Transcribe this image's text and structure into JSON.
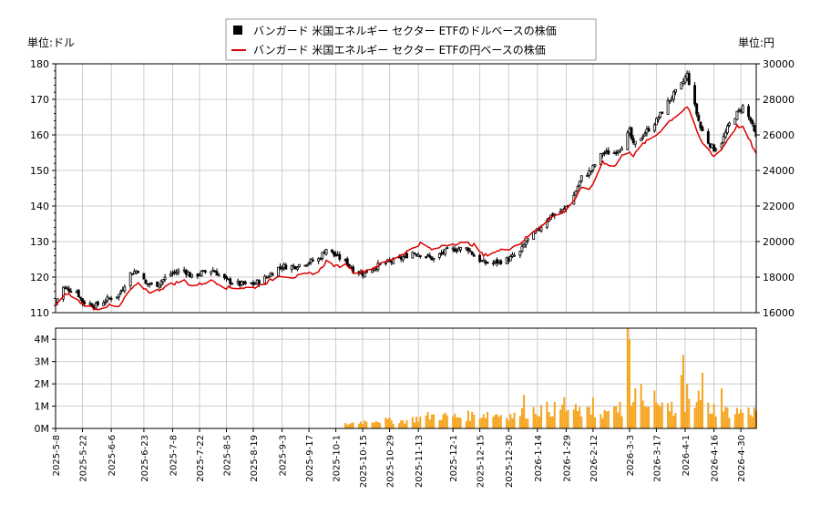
{
  "chart_data": [
    {
      "type": "candlestick+line",
      "legend": {
        "placement": "top-center",
        "entries": [
          {
            "label": "バンガード 米国エネルギー セクター ETFのドルベースの株価",
            "color": "#000000",
            "marker": "square"
          },
          {
            "label": "バンガード 米国エネルギー セクター ETFの円ベースの株価",
            "color": "#dd0000",
            "marker": "line"
          }
        ]
      },
      "left_unit_label": "単位:ドル",
      "right_unit_label": "単位:円",
      "ylim_left": [
        110,
        180
      ],
      "ylim_right": [
        16000,
        30000
      ],
      "yticks_left": [
        110,
        120,
        130,
        140,
        150,
        160,
        170,
        180
      ],
      "yticks_right": [
        16000,
        18000,
        20000,
        22000,
        24000,
        26000,
        28000,
        30000
      ],
      "grid": true,
      "price_anchors": [
        [
          "2025-05-08",
          113
        ],
        [
          "2025-05-12",
          117
        ],
        [
          "2025-05-19",
          116
        ],
        [
          "2025-05-22",
          113
        ],
        [
          "2025-05-29",
          112
        ],
        [
          "2025-06-05",
          114
        ],
        [
          "2025-06-10",
          115
        ],
        [
          "2025-06-16",
          121
        ],
        [
          "2025-06-20",
          122
        ],
        [
          "2025-06-24",
          118
        ],
        [
          "2025-06-30",
          118
        ],
        [
          "2025-07-07",
          121
        ],
        [
          "2025-07-14",
          122
        ],
        [
          "2025-07-18",
          120
        ],
        [
          "2025-07-22",
          121
        ],
        [
          "2025-07-29",
          122
        ],
        [
          "2025-08-05",
          119
        ],
        [
          "2025-08-12",
          118
        ],
        [
          "2025-08-19",
          118
        ],
        [
          "2025-08-26",
          120
        ],
        [
          "2025-09-02",
          123
        ],
        [
          "2025-09-09",
          123
        ],
        [
          "2025-09-15",
          124
        ],
        [
          "2025-09-22",
          125
        ],
        [
          "2025-09-26",
          128
        ],
        [
          "2025-10-01",
          126
        ],
        [
          "2025-10-07",
          124
        ],
        [
          "2025-10-10",
          122
        ],
        [
          "2025-10-15",
          121
        ],
        [
          "2025-10-22",
          123
        ],
        [
          "2025-10-27",
          124
        ],
        [
          "2025-11-03",
          125
        ],
        [
          "2025-11-10",
          127
        ],
        [
          "2025-11-17",
          126
        ],
        [
          "2025-11-21",
          125
        ],
        [
          "2025-11-26",
          127
        ],
        [
          "2025-12-03",
          128
        ],
        [
          "2025-12-09",
          128
        ],
        [
          "2025-12-12",
          126
        ],
        [
          "2025-12-17",
          124
        ],
        [
          "2025-12-22",
          124
        ],
        [
          "2025-12-30",
          125
        ],
        [
          "2026-01-05",
          127
        ],
        [
          "2026-01-08",
          130
        ],
        [
          "2026-01-14",
          133
        ],
        [
          "2026-01-20",
          137
        ],
        [
          "2026-01-28",
          139
        ],
        [
          "2026-02-02",
          143
        ],
        [
          "2026-02-06",
          148
        ],
        [
          "2026-02-11",
          150
        ],
        [
          "2026-02-17",
          155
        ],
        [
          "2026-02-23",
          155
        ],
        [
          "2026-02-27",
          157
        ],
        [
          "2026-03-03",
          161
        ],
        [
          "2026-03-05",
          157
        ],
        [
          "2026-03-10",
          160
        ],
        [
          "2026-03-17",
          164
        ],
        [
          "2026-03-24",
          170
        ],
        [
          "2026-03-30",
          174
        ],
        [
          "2026-04-02",
          177
        ],
        [
          "2026-04-06",
          168
        ],
        [
          "2026-04-09",
          162
        ],
        [
          "2026-04-13",
          158
        ],
        [
          "2026-04-16",
          156
        ],
        [
          "2026-04-20",
          158
        ],
        [
          "2026-04-24",
          163
        ],
        [
          "2026-04-28",
          166
        ],
        [
          "2026-05-01",
          168
        ],
        [
          "2026-05-05",
          164
        ],
        [
          "2026-05-08",
          159
        ]
      ],
      "yen_anchors": [
        [
          "2025-05-08",
          16400
        ],
        [
          "2025-05-14",
          17100
        ],
        [
          "2025-05-22",
          16500
        ],
        [
          "2025-05-29",
          16200
        ],
        [
          "2025-06-05",
          16400
        ],
        [
          "2025-06-10",
          16300
        ],
        [
          "2025-06-16",
          17300
        ],
        [
          "2025-06-20",
          17600
        ],
        [
          "2025-06-27",
          17100
        ],
        [
          "2025-07-07",
          17600
        ],
        [
          "2025-07-14",
          17800
        ],
        [
          "2025-07-18",
          17500
        ],
        [
          "2025-07-29",
          17800
        ],
        [
          "2025-08-05",
          17400
        ],
        [
          "2025-08-12",
          17400
        ],
        [
          "2025-08-19",
          17400
        ],
        [
          "2025-08-26",
          17700
        ],
        [
          "2025-09-02",
          18100
        ],
        [
          "2025-09-09",
          18000
        ],
        [
          "2025-09-22",
          18300
        ],
        [
          "2025-09-26",
          18900
        ],
        [
          "2025-10-01",
          18600
        ],
        [
          "2025-10-07",
          18700
        ],
        [
          "2025-10-10",
          18300
        ],
        [
          "2025-10-15",
          18300
        ],
        [
          "2025-10-22",
          18600
        ],
        [
          "2025-10-28",
          18900
        ],
        [
          "2025-11-03",
          19200
        ],
        [
          "2025-11-10",
          19600
        ],
        [
          "2025-11-14",
          19900
        ],
        [
          "2025-11-21",
          19500
        ],
        [
          "2025-11-26",
          19800
        ],
        [
          "2025-12-03",
          19900
        ],
        [
          "2025-12-09",
          19900
        ],
        [
          "2025-12-12",
          19800
        ],
        [
          "2025-12-17",
          19200
        ],
        [
          "2025-12-22",
          19400
        ],
        [
          "2025-12-30",
          19600
        ],
        [
          "2026-01-05",
          19900
        ],
        [
          "2026-01-08",
          20200
        ],
        [
          "2026-01-14",
          20700
        ],
        [
          "2026-01-20",
          21300
        ],
        [
          "2026-01-28",
          21700
        ],
        [
          "2026-02-02",
          22300
        ],
        [
          "2026-02-06",
          23000
        ],
        [
          "2026-02-11",
          23000
        ],
        [
          "2026-02-17",
          24500
        ],
        [
          "2026-02-23",
          24200
        ],
        [
          "2026-02-27",
          24800
        ],
        [
          "2026-03-03",
          25100
        ],
        [
          "2026-03-05",
          24800
        ],
        [
          "2026-03-10",
          25500
        ],
        [
          "2026-03-17",
          26000
        ],
        [
          "2026-03-24",
          26800
        ],
        [
          "2026-03-30",
          27300
        ],
        [
          "2026-04-02",
          27600
        ],
        [
          "2026-04-06",
          26500
        ],
        [
          "2026-04-09",
          25700
        ],
        [
          "2026-04-13",
          25200
        ],
        [
          "2026-04-16",
          24800
        ],
        [
          "2026-04-20",
          25200
        ],
        [
          "2026-04-24",
          25900
        ],
        [
          "2026-04-28",
          26500
        ],
        [
          "2026-05-01",
          26400
        ],
        [
          "2026-05-05",
          25600
        ],
        [
          "2026-05-08",
          24900
        ]
      ]
    },
    {
      "type": "bar",
      "ylim": [
        0,
        4500000
      ],
      "yticks": [
        0,
        1000000,
        2000000,
        3000000,
        4000000
      ],
      "ytick_labels": [
        "0M",
        "1M",
        "2M",
        "3M",
        "4M"
      ],
      "grid": true,
      "bar_color": "#f5a623",
      "x_ticks": [
        "2025-5-8",
        "2025-5-22",
        "2025-6-6",
        "2025-6-23",
        "2025-7-8",
        "2025-7-22",
        "2025-8-5",
        "2025-8-19",
        "2025-9-3",
        "2025-9-17",
        "2025-10-1",
        "2025-10-15",
        "2025-10-29",
        "2025-11-13",
        "2025-12-1",
        "2025-12-15",
        "2025-12-30",
        "2026-1-14",
        "2026-1-29",
        "2026-2-12",
        "2026-3-3",
        "2026-3-17",
        "2026-4-1",
        "2026-4-16",
        "2026-4-30"
      ],
      "volume_start": "2025-10-06",
      "volume_anchors": [
        [
          "2025-10-06",
          200000
        ],
        [
          "2025-10-20",
          400000
        ],
        [
          "2025-11-05",
          350000
        ],
        [
          "2025-11-20",
          600000
        ],
        [
          "2025-12-05",
          550000
        ],
        [
          "2025-12-19",
          700000
        ],
        [
          "2026-01-02",
          600000
        ],
        [
          "2026-01-14",
          900000
        ],
        [
          "2026-01-29",
          900000
        ],
        [
          "2026-02-12",
          700000
        ],
        [
          "2026-02-24",
          800000
        ],
        [
          "2026-03-10",
          1000000
        ],
        [
          "2026-03-24",
          1000000
        ],
        [
          "2026-04-08",
          1100000
        ],
        [
          "2026-04-22",
          800000
        ],
        [
          "2026-05-08",
          800000
        ]
      ],
      "volume_spikes": [
        [
          "2026-01-07",
          1500000
        ],
        [
          "2026-01-28",
          1400000
        ],
        [
          "2026-02-12",
          1400000
        ],
        [
          "2026-02-26",
          1200000
        ],
        [
          "2026-03-02",
          4500000
        ],
        [
          "2026-03-03",
          4000000
        ],
        [
          "2026-03-06",
          1800000
        ],
        [
          "2026-03-09",
          2000000
        ],
        [
          "2026-03-16",
          1700000
        ],
        [
          "2026-03-25",
          1200000
        ],
        [
          "2026-03-30",
          2400000
        ],
        [
          "2026-03-31",
          3300000
        ],
        [
          "2026-04-02",
          2000000
        ],
        [
          "2026-04-08",
          1700000
        ],
        [
          "2026-04-10",
          2500000
        ],
        [
          "2026-04-20",
          1800000
        ]
      ]
    }
  ]
}
